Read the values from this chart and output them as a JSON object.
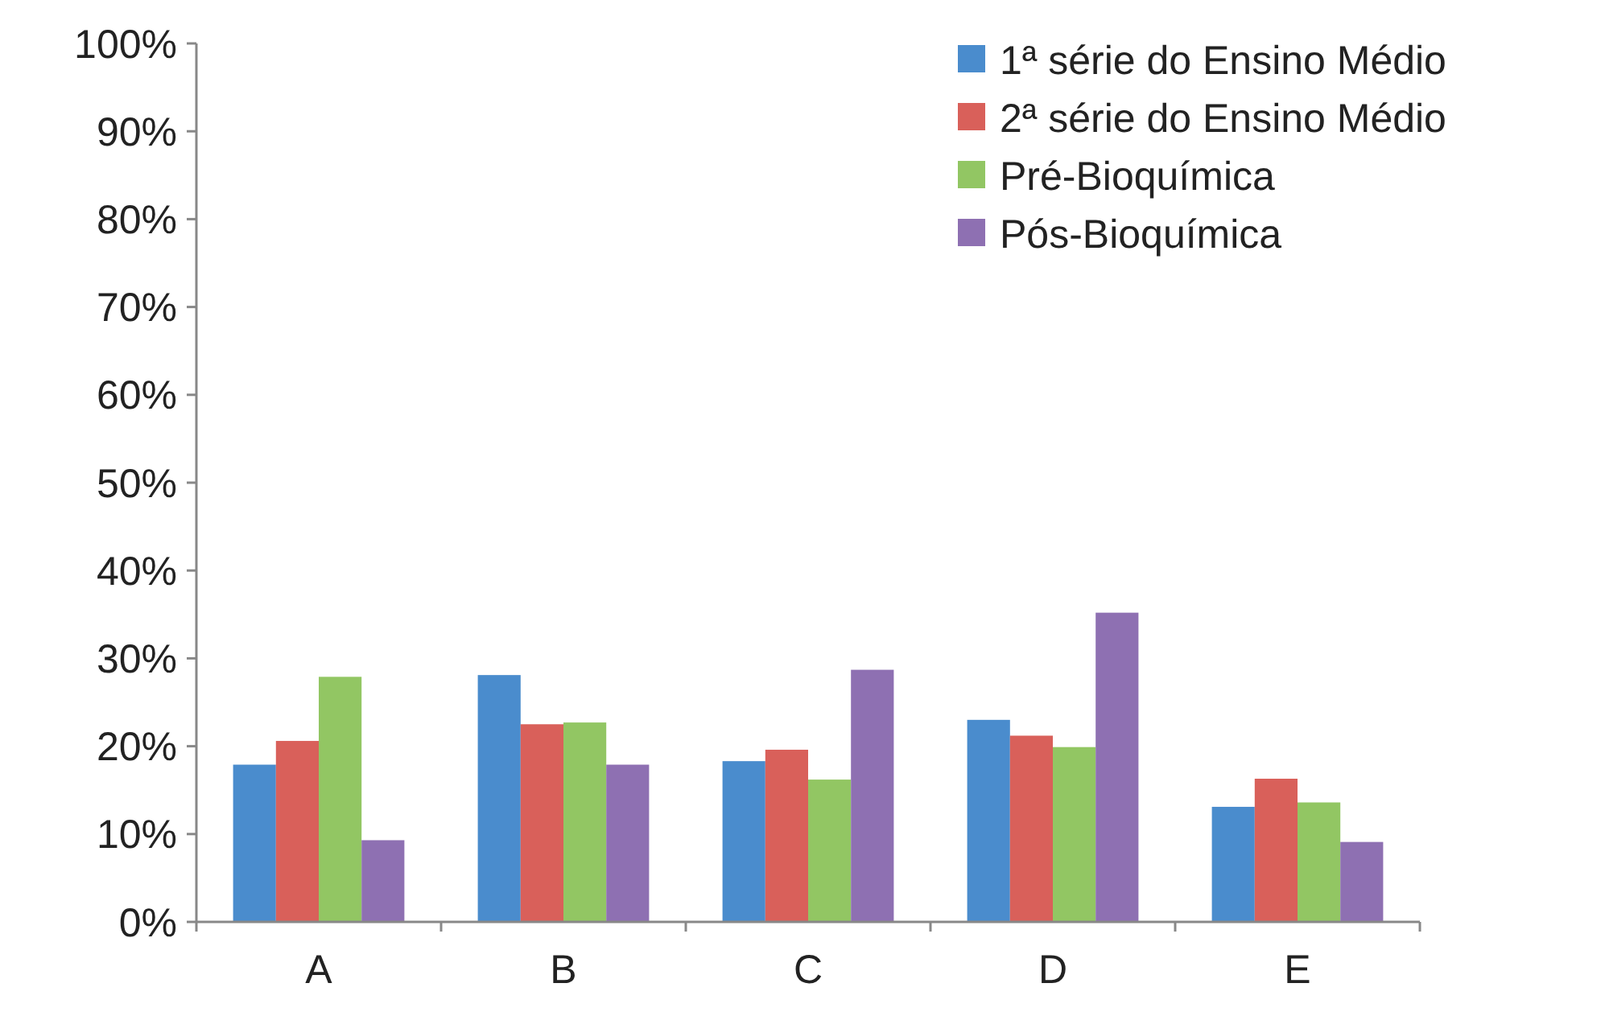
{
  "chart_data": {
    "type": "bar",
    "categories": [
      "A",
      "B",
      "C",
      "D",
      "E"
    ],
    "series": [
      {
        "name": "1ª série do Ensino Médio",
        "color": "#4a8ccd",
        "values": [
          17.9,
          28.1,
          18.3,
          23.0,
          13.1
        ]
      },
      {
        "name": "2ª série do Ensino Médio",
        "color": "#d9605a",
        "values": [
          20.6,
          22.5,
          19.6,
          21.2,
          16.3
        ]
      },
      {
        "name": "Pré-Bioquímica",
        "color": "#92c663",
        "values": [
          27.9,
          22.7,
          16.2,
          19.9,
          13.6
        ]
      },
      {
        "name": "Pós-Bioquímica",
        "color": "#8e70b2",
        "values": [
          9.3,
          17.9,
          28.7,
          35.2,
          9.1
        ]
      }
    ],
    "ylim": [
      0,
      100
    ],
    "yticks": [
      {
        "value": 0,
        "label": "0%"
      },
      {
        "value": 10,
        "label": "10%"
      },
      {
        "value": 20,
        "label": "20%"
      },
      {
        "value": 30,
        "label": "30%"
      },
      {
        "value": 40,
        "label": "40%"
      },
      {
        "value": 50,
        "label": "50%"
      },
      {
        "value": 60,
        "label": "60%"
      },
      {
        "value": 70,
        "label": "70%"
      },
      {
        "value": 80,
        "label": "80%"
      },
      {
        "value": 90,
        "label": "90%"
      },
      {
        "value": 100,
        "label": "100%"
      }
    ],
    "grid": false,
    "legend": "top right"
  }
}
